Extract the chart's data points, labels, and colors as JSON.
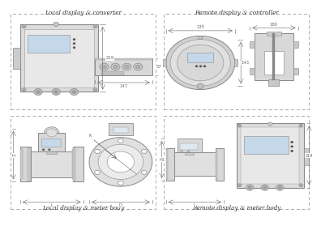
{
  "title_tl": "Local display & converter",
  "title_tr": "Remote display & controller",
  "title_bl": "Local display & meter body",
  "title_br": "Remote display & meter body",
  "bg_color": "#ffffff",
  "dim_color": "#666666",
  "text_color": "#333333",
  "device_light": "#e8e8e8",
  "device_mid": "#d5d5d5",
  "device_dark": "#c0c0c0",
  "screen_color": "#c5d8ea",
  "stroke": "#888888",
  "stroke_dark": "#666666",
  "dims_tl": {
    "h": "219",
    "w": "147",
    "d": "57"
  },
  "dims_tr": {
    "front_w": "135",
    "side_w": "180",
    "h": "143"
  },
  "dims_bl": {
    "H": "H",
    "L": "L",
    "K": "K",
    "D": "D"
  },
  "dims_br": {
    "H1": "H1",
    "L": "L",
    "h": "219"
  }
}
